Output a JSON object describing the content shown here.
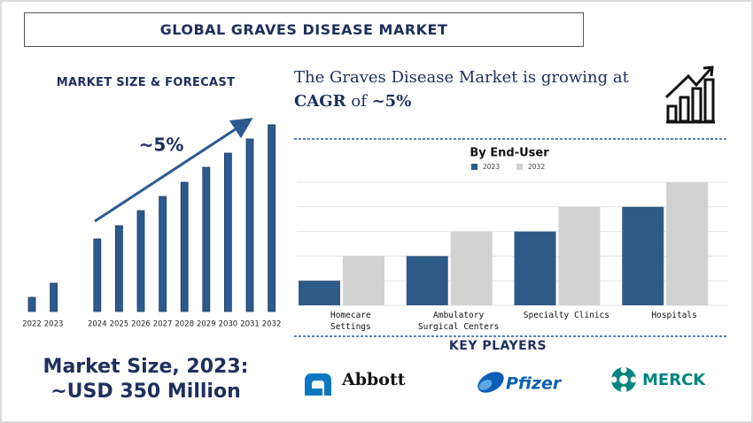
{
  "header": {
    "title": "GLOBAL GRAVES DISEASE MARKET"
  },
  "headline": {
    "line1": "The Graves Disease Market is growing at",
    "cagr": "CAGR",
    "of": "of",
    "rate": "~5%"
  },
  "chart_data": [
    {
      "type": "bar",
      "title": "MARKET SIZE & FORECAST",
      "categories": [
        "2022",
        "2023",
        "2024",
        "2025",
        "2026",
        "2027",
        "2028",
        "2029",
        "2030",
        "2031",
        "2032"
      ],
      "values": [
        16,
        32,
        82,
        97,
        114,
        130,
        146,
        163,
        179,
        195,
        211
      ],
      "color": "#2d5a8e",
      "ylim": [
        0,
        220
      ],
      "annotation": "~5%"
    },
    {
      "type": "grouped_bar",
      "title": "By End-User",
      "categories": [
        "Homecare\nSettings",
        "Ambulatory\nSurgical Centers",
        "Specialty Clinics",
        "Hospitals"
      ],
      "series": [
        {
          "name": "2023",
          "color": "#2e5a87",
          "values": [
            1,
            2,
            3,
            4
          ]
        },
        {
          "name": "2032",
          "color": "#d2d2d2",
          "values": [
            2,
            3,
            4,
            5
          ]
        }
      ],
      "ylim": [
        0,
        5
      ],
      "yticks": [
        0,
        1,
        2,
        3,
        4,
        5
      ],
      "grid": true
    }
  ],
  "market_size": {
    "line1": "Market Size, 2023:",
    "line2": "~USD 350 Million"
  },
  "key_players": {
    "title": "KEY PLAYERS",
    "players": [
      "Abbott",
      "Pfizer",
      "MERCK"
    ]
  }
}
